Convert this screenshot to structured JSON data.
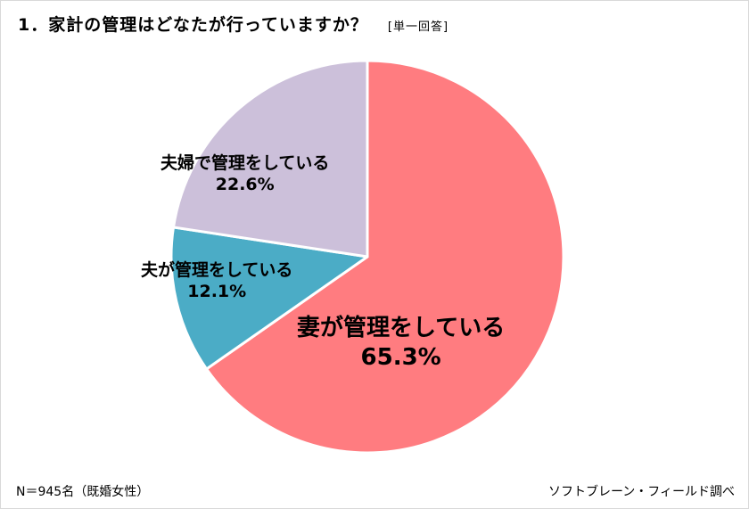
{
  "header": {
    "title": "1．家計の管理はどなたが行っていますか？",
    "answer_type": "[単一回答]"
  },
  "footer": {
    "sample": "N＝945名（既婚女性）",
    "source": "ソフトブレーン・フィールド調べ"
  },
  "labels": {
    "wife": {
      "name": "妻が管理をしている",
      "value": "65.3%"
    },
    "husband": {
      "name": "夫が管理をしている",
      "value": "12.1%"
    },
    "couple": {
      "name": "夫婦で管理をしている",
      "value": "22.6%"
    }
  },
  "chart_data": {
    "type": "pie",
    "title": "1．家計の管理はどなたが行っていますか？ [単一回答]",
    "categories": [
      "妻が管理をしている",
      "夫が管理をしている",
      "夫婦で管理をしている"
    ],
    "values": [
      65.3,
      12.1,
      22.6
    ],
    "colors": [
      "#FF7C80",
      "#4BACC6",
      "#CCC0DA"
    ],
    "start_angle": "12 o'clock",
    "direction": "clockwise",
    "unit": "%",
    "legend": "none (data labels inside slices)",
    "annotations": [
      "N＝945名（既婚女性）",
      "ソフトブレーン・フィールド調べ"
    ]
  }
}
